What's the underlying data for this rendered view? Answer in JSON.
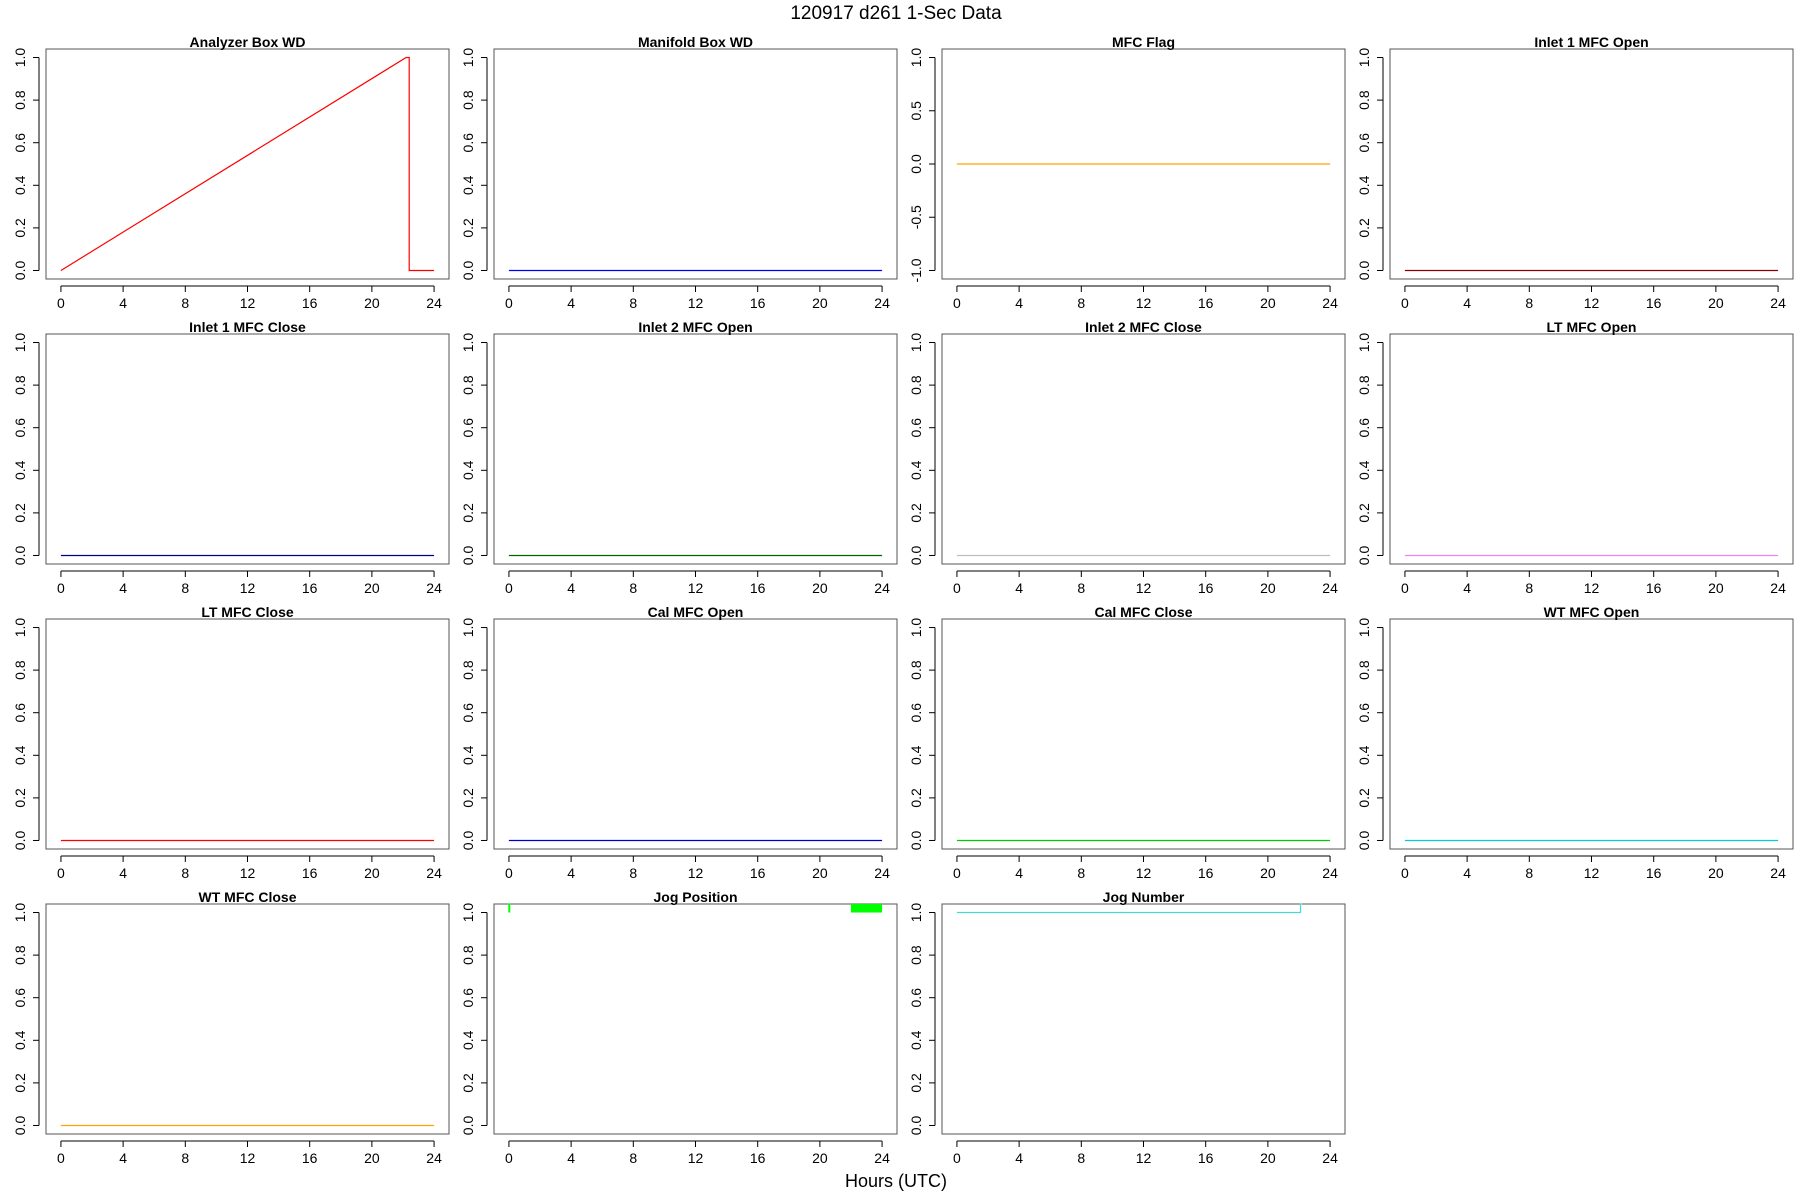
{
  "figure": {
    "title": "120917    d261    1-Sec Data",
    "xlabel": "Hours (UTC)"
  },
  "chart_data": [
    {
      "type": "line",
      "title": "Analyzer Box WD",
      "color": "#FF0000",
      "xlim": [
        0,
        24
      ],
      "ylim": [
        0,
        1
      ],
      "xticks": [
        "0",
        "4",
        "8",
        "12",
        "16",
        "20",
        "24"
      ],
      "yticks": [
        "0.0",
        "0.2",
        "0.4",
        "0.6",
        "0.8",
        "1.0"
      ],
      "x": [
        0,
        22.2,
        22.4,
        22.4,
        24
      ],
      "y": [
        0,
        1,
        1,
        0,
        0
      ]
    },
    {
      "type": "line",
      "title": "Manifold Box WD",
      "color": "#0000FF",
      "xlim": [
        0,
        24
      ],
      "ylim": [
        0,
        1
      ],
      "xticks": [
        "0",
        "4",
        "8",
        "12",
        "16",
        "20",
        "24"
      ],
      "yticks": [
        "0.0",
        "0.2",
        "0.4",
        "0.6",
        "0.8",
        "1.0"
      ],
      "x": [
        0,
        24
      ],
      "y": [
        0,
        0
      ]
    },
    {
      "type": "line",
      "title": "MFC Flag",
      "color": "#FFA500",
      "xlim": [
        0,
        24
      ],
      "ylim": [
        -1,
        1
      ],
      "xticks": [
        "0",
        "4",
        "8",
        "12",
        "16",
        "20",
        "24"
      ],
      "yticks": [
        "-1.0",
        "-0.5",
        "0.0",
        "0.5",
        "1.0"
      ],
      "x": [
        0,
        24
      ],
      "y": [
        0,
        0
      ]
    },
    {
      "type": "line",
      "title": "Inlet 1 MFC Open",
      "color": "#8B0000",
      "xlim": [
        0,
        24
      ],
      "ylim": [
        0,
        1
      ],
      "xticks": [
        "0",
        "4",
        "8",
        "12",
        "16",
        "20",
        "24"
      ],
      "yticks": [
        "0.0",
        "0.2",
        "0.4",
        "0.6",
        "0.8",
        "1.0"
      ],
      "x": [
        0,
        24
      ],
      "y": [
        0,
        0
      ]
    },
    {
      "type": "line",
      "title": "Inlet 1 MFC Close",
      "color": "#00008B",
      "xlim": [
        0,
        24
      ],
      "ylim": [
        0,
        1
      ],
      "xticks": [
        "0",
        "4",
        "8",
        "12",
        "16",
        "20",
        "24"
      ],
      "yticks": [
        "0.0",
        "0.2",
        "0.4",
        "0.6",
        "0.8",
        "1.0"
      ],
      "x": [
        0,
        24
      ],
      "y": [
        0,
        0
      ]
    },
    {
      "type": "line",
      "title": "Inlet 2 MFC Open",
      "color": "#006400",
      "xlim": [
        0,
        24
      ],
      "ylim": [
        0,
        1
      ],
      "xticks": [
        "0",
        "4",
        "8",
        "12",
        "16",
        "20",
        "24"
      ],
      "yticks": [
        "0.0",
        "0.2",
        "0.4",
        "0.6",
        "0.8",
        "1.0"
      ],
      "x": [
        0,
        24
      ],
      "y": [
        0,
        0
      ]
    },
    {
      "type": "line",
      "title": "Inlet 2 MFC Close",
      "color": "#BEBEBE",
      "xlim": [
        0,
        24
      ],
      "ylim": [
        0,
        1
      ],
      "xticks": [
        "0",
        "4",
        "8",
        "12",
        "16",
        "20",
        "24"
      ],
      "yticks": [
        "0.0",
        "0.2",
        "0.4",
        "0.6",
        "0.8",
        "1.0"
      ],
      "x": [
        0,
        24
      ],
      "y": [
        0,
        0
      ]
    },
    {
      "type": "line",
      "title": "LT MFC Open",
      "color": "#EE82EE",
      "xlim": [
        0,
        24
      ],
      "ylim": [
        0,
        1
      ],
      "xticks": [
        "0",
        "4",
        "8",
        "12",
        "16",
        "20",
        "24"
      ],
      "yticks": [
        "0.0",
        "0.2",
        "0.4",
        "0.6",
        "0.8",
        "1.0"
      ],
      "x": [
        0,
        24
      ],
      "y": [
        0,
        0
      ]
    },
    {
      "type": "line",
      "title": "LT MFC Close",
      "color": "#FF0000",
      "xlim": [
        0,
        24
      ],
      "ylim": [
        0,
        1
      ],
      "xticks": [
        "0",
        "4",
        "8",
        "12",
        "16",
        "20",
        "24"
      ],
      "yticks": [
        "0.0",
        "0.2",
        "0.4",
        "0.6",
        "0.8",
        "1.0"
      ],
      "x": [
        0,
        24
      ],
      "y": [
        0,
        0
      ]
    },
    {
      "type": "line",
      "title": "Cal MFC Open",
      "color": "#0000CD",
      "xlim": [
        0,
        24
      ],
      "ylim": [
        0,
        1
      ],
      "xticks": [
        "0",
        "4",
        "8",
        "12",
        "16",
        "20",
        "24"
      ],
      "yticks": [
        "0.0",
        "0.2",
        "0.4",
        "0.6",
        "0.8",
        "1.0"
      ],
      "x": [
        0,
        24
      ],
      "y": [
        0,
        0
      ]
    },
    {
      "type": "line",
      "title": "Cal MFC Close",
      "color": "#00CD00",
      "xlim": [
        0,
        24
      ],
      "ylim": [
        0,
        1
      ],
      "xticks": [
        "0",
        "4",
        "8",
        "12",
        "16",
        "20",
        "24"
      ],
      "yticks": [
        "0.0",
        "0.2",
        "0.4",
        "0.6",
        "0.8",
        "1.0"
      ],
      "x": [
        0,
        24
      ],
      "y": [
        0,
        0
      ]
    },
    {
      "type": "line",
      "title": "WT MFC Open",
      "color": "#00CED1",
      "xlim": [
        0,
        24
      ],
      "ylim": [
        0,
        1
      ],
      "xticks": [
        "0",
        "4",
        "8",
        "12",
        "16",
        "20",
        "24"
      ],
      "yticks": [
        "0.0",
        "0.2",
        "0.4",
        "0.6",
        "0.8",
        "1.0"
      ],
      "x": [
        0,
        24
      ],
      "y": [
        0,
        0
      ]
    },
    {
      "type": "line",
      "title": "WT MFC Close",
      "color": "#FFA500",
      "xlim": [
        0,
        24
      ],
      "ylim": [
        0,
        1
      ],
      "xticks": [
        "0",
        "4",
        "8",
        "12",
        "16",
        "20",
        "24"
      ],
      "yticks": [
        "0.0",
        "0.2",
        "0.4",
        "0.6",
        "0.8",
        "1.0"
      ],
      "x": [
        0,
        24
      ],
      "y": [
        0,
        0
      ]
    },
    {
      "type": "line",
      "title": "Jog Position",
      "color": "#00FF00",
      "xlim": [
        0,
        24
      ],
      "ylim": [
        0,
        1
      ],
      "xticks": [
        "0",
        "4",
        "8",
        "12",
        "16",
        "20",
        "24"
      ],
      "yticks": [
        "0.0",
        "0.2",
        "0.4",
        "0.6",
        "0.8",
        "1.0"
      ],
      "x": [
        0,
        0,
        0.05,
        0.05
      ],
      "y": [
        1,
        1.04,
        1.04,
        1
      ],
      "band": {
        "x": [
          22,
          24
        ],
        "y": [
          1,
          1.04
        ]
      }
    },
    {
      "type": "line",
      "title": "Jog Number",
      "color": "#40E0D0",
      "xlim": [
        0,
        24
      ],
      "ylim": [
        0,
        1
      ],
      "xticks": [
        "0",
        "4",
        "8",
        "12",
        "16",
        "20",
        "24"
      ],
      "yticks": [
        "0.0",
        "0.2",
        "0.4",
        "0.6",
        "0.8",
        "1.0"
      ],
      "x": [
        0,
        22.1,
        22.1,
        22.2
      ],
      "y": [
        1,
        1,
        1.04,
        1.04
      ]
    }
  ]
}
